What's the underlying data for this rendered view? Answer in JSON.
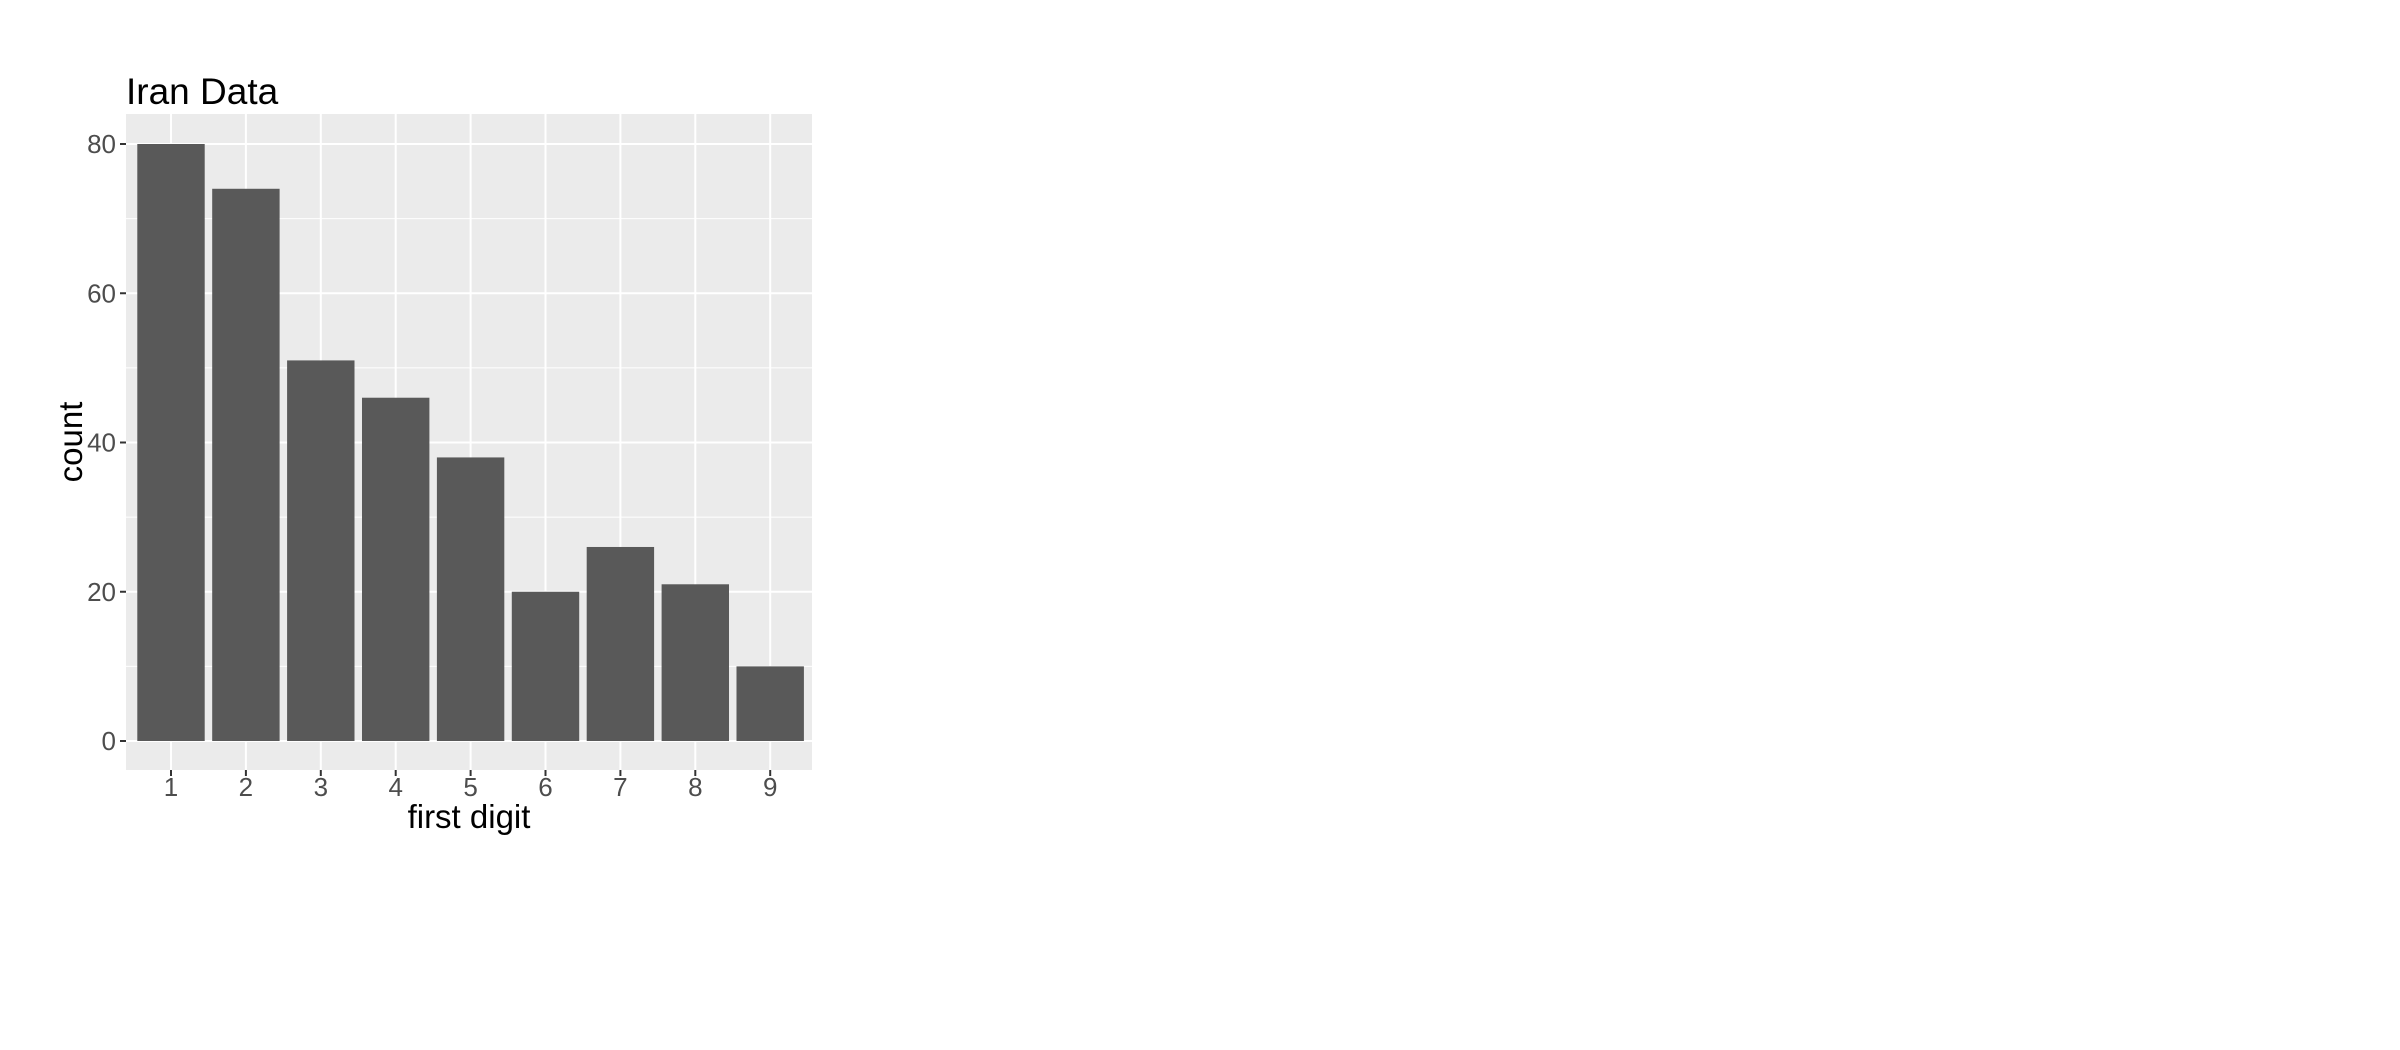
{
  "chart_data": {
    "type": "bar",
    "title": "Iran Data",
    "xlabel": "first digit",
    "ylabel": "count",
    "categories": [
      "1",
      "2",
      "3",
      "4",
      "5",
      "6",
      "7",
      "8",
      "9"
    ],
    "values": [
      80,
      74,
      51,
      46,
      38,
      20,
      26,
      21,
      10
    ],
    "ylim": [
      0,
      84
    ],
    "yticks": [
      0,
      20,
      40,
      60,
      80
    ],
    "grid": true,
    "bar_color": "#595959",
    "panel_color": "#ebebeb",
    "grid_color": "#ffffff"
  }
}
